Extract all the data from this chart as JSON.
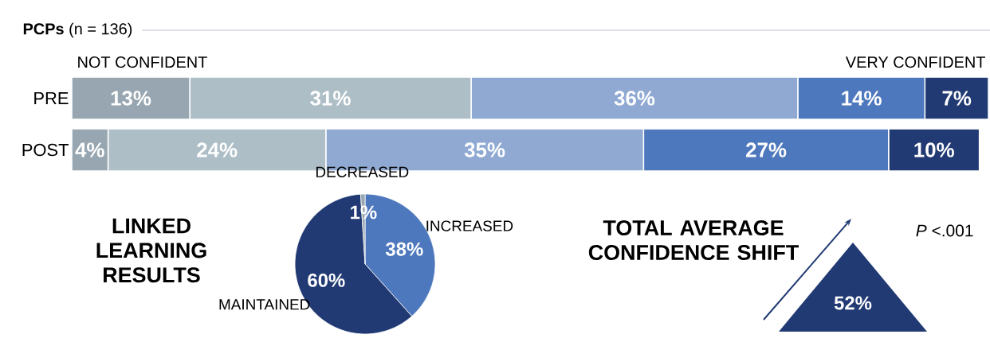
{
  "chart_data": [
    {
      "type": "bar",
      "orientation": "horizontal",
      "stacked": true,
      "title": "**PCPs** (n = 136)",
      "categories": [
        "PRE",
        "POST"
      ],
      "xlim": [
        0,
        101
      ],
      "tick_labels": "y",
      "data_labels": true,
      "annotations": [
        "NOT CONFIDENT",
        "VERY CONFIDENT"
      ],
      "series": [
        {
          "color": "#97a6b0",
          "values": [
            13,
            4
          ],
          "value_labels": [
            "13%",
            "4%"
          ]
        },
        {
          "color": "#adbec6",
          "values": [
            31,
            24
          ],
          "value_labels": [
            "31%",
            "24%"
          ]
        },
        {
          "color": "#8fa9d2",
          "values": [
            36,
            35
          ],
          "value_labels": [
            "36%",
            "35%"
          ]
        },
        {
          "color": "#4e78bd",
          "values": [
            14,
            27
          ],
          "value_labels": [
            "14%",
            "27%"
          ]
        },
        {
          "color": "#213a73",
          "values": [
            7,
            10
          ],
          "value_labels": [
            "7%",
            "10%"
          ]
        }
      ]
    },
    {
      "type": "pie",
      "title": "LINKED LEARNING RESULTS",
      "categories": [
        "INCREASED",
        "MAINTAINED",
        "DECREASED"
      ],
      "values": [
        38,
        60,
        1
      ],
      "value_labels": [
        "38%",
        "60%",
        "1%"
      ],
      "colors": [
        "#4e78bd",
        "#213a73",
        "#97a6b0"
      ]
    },
    {
      "type": "other",
      "title": "TOTAL AVERAGE CONFIDENCE SHIFT",
      "values": [
        52
      ],
      "value_labels": [
        "52%"
      ],
      "colors": [
        "#213a73"
      ],
      "annotations": [
        "*P* <.001"
      ]
    }
  ]
}
